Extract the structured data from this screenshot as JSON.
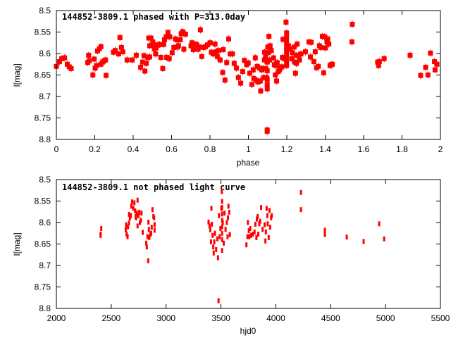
{
  "chart_data": [
    {
      "type": "scatter",
      "title": "144852-3809.1 phased with P=313.0day",
      "xlabel": "phase",
      "ylabel": "I[mag]",
      "xlim": [
        0,
        2
      ],
      "ylim": [
        8.5,
        8.8
      ],
      "y_inverted": true,
      "xticks": [
        0,
        0.2,
        0.4,
        0.6,
        0.8,
        1,
        1.2,
        1.4,
        1.6,
        1.8,
        2
      ],
      "yticks": [
        8.5,
        8.55,
        8.6,
        8.65,
        8.7,
        8.75,
        8.8
      ],
      "grid": false,
      "color": "#ff0000",
      "marker": "square",
      "points": [
        [
          0.0,
          8.63
        ],
        [
          0.016,
          8.619
        ],
        [
          0.028,
          8.612
        ],
        [
          0.043,
          8.61
        ],
        [
          0.057,
          8.625
        ],
        [
          0.067,
          8.631
        ],
        [
          0.077,
          8.635
        ],
        [
          0.163,
          8.621
        ],
        [
          0.171,
          8.617
        ],
        [
          0.168,
          8.604
        ],
        [
          0.19,
          8.65
        ],
        [
          0.197,
          8.613
        ],
        [
          0.202,
          8.634
        ],
        [
          0.209,
          8.628
        ],
        [
          0.214,
          8.594
        ],
        [
          0.224,
          8.589
        ],
        [
          0.232,
          8.584
        ],
        [
          0.232,
          8.625
        ],
        [
          0.241,
          8.62
        ],
        [
          0.248,
          8.617
        ],
        [
          0.256,
          8.615
        ],
        [
          0.259,
          8.651
        ],
        [
          0.297,
          8.597
        ],
        [
          0.306,
          8.593
        ],
        [
          0.324,
          8.601
        ],
        [
          0.331,
          8.563
        ],
        [
          0.339,
          8.586
        ],
        [
          0.346,
          8.596
        ],
        [
          0.368,
          8.615
        ],
        [
          0.395,
          8.615
        ],
        [
          0.416,
          8.604
        ],
        [
          0.439,
          8.632
        ],
        [
          0.449,
          8.62
        ],
        [
          0.456,
          8.605
        ],
        [
          0.461,
          8.641
        ],
        [
          0.468,
          8.623
        ],
        [
          0.476,
          8.609
        ],
        [
          0.486,
          8.608
        ],
        [
          0.481,
          8.564
        ],
        [
          0.486,
          8.582
        ],
        [
          0.493,
          8.564
        ],
        [
          0.502,
          8.573
        ],
        [
          0.508,
          8.579
        ],
        [
          0.51,
          8.589
        ],
        [
          0.517,
          8.601
        ],
        [
          0.52,
          8.587
        ],
        [
          0.53,
          8.58
        ],
        [
          0.538,
          8.579
        ],
        [
          0.544,
          8.609
        ],
        [
          0.554,
          8.635
        ],
        [
          0.559,
          8.579
        ],
        [
          0.563,
          8.568
        ],
        [
          0.571,
          8.561
        ],
        [
          0.581,
          8.551
        ],
        [
          0.583,
          8.56
        ],
        [
          0.591,
          8.561
        ],
        [
          0.574,
          8.609
        ],
        [
          0.588,
          8.612
        ],
        [
          0.603,
          8.598
        ],
        [
          0.612,
          8.586
        ],
        [
          0.62,
          8.566
        ],
        [
          0.628,
          8.568
        ],
        [
          0.63,
          8.585
        ],
        [
          0.636,
          8.582
        ],
        [
          0.645,
          8.568
        ],
        [
          0.65,
          8.554
        ],
        [
          0.657,
          8.549
        ],
        [
          0.664,
          8.59
        ],
        [
          0.673,
          8.555
        ],
        [
          0.701,
          8.582
        ],
        [
          0.706,
          8.575
        ],
        [
          0.713,
          8.591
        ],
        [
          0.722,
          8.579
        ],
        [
          0.73,
          8.579
        ],
        [
          0.738,
          8.59
        ],
        [
          0.748,
          8.585
        ],
        [
          0.75,
          8.545
        ],
        [
          0.757,
          8.607
        ],
        [
          0.767,
          8.586
        ],
        [
          0.777,
          8.584
        ],
        [
          0.787,
          8.58
        ],
        [
          0.801,
          8.575
        ],
        [
          0.807,
          8.597
        ],
        [
          0.816,
          8.601
        ],
        [
          0.826,
          8.578
        ],
        [
          0.832,
          8.596
        ],
        [
          0.838,
          8.607
        ],
        [
          0.844,
          8.593
        ],
        [
          0.853,
          8.615
        ],
        [
          0.866,
          8.644
        ],
        [
          0.869,
          8.591
        ],
        [
          0.878,
          8.662
        ],
        [
          0.887,
          8.621
        ],
        [
          0.897,
          8.566
        ],
        [
          0.905,
          8.601
        ],
        [
          0.917,
          8.601
        ],
        [
          0.926,
          8.623
        ],
        [
          0.938,
          8.634
        ],
        [
          0.948,
          8.656
        ],
        [
          0.96,
          8.669
        ],
        [
          0.97,
          8.642
        ],
        [
          0.979,
          8.616
        ],
        [
          0.991,
          8.626
        ],
        [
          0.999,
          8.622
        ],
        [
          1.007,
          8.646
        ],
        [
          1.018,
          8.672
        ],
        [
          1.025,
          8.638
        ],
        [
          1.028,
          8.658
        ],
        [
          1.036,
          8.61
        ],
        [
          1.04,
          8.662
        ],
        [
          1.046,
          8.63
        ],
        [
          1.049,
          8.666
        ],
        [
          1.058,
          8.634
        ],
        [
          1.062,
          8.664
        ],
        [
          1.064,
          8.687
        ],
        [
          1.07,
          8.638
        ],
        [
          1.076,
          8.635
        ],
        [
          1.079,
          8.656
        ],
        [
          1.083,
          8.615
        ],
        [
          1.084,
          8.597
        ],
        [
          1.089,
          8.609
        ],
        [
          1.091,
          8.635
        ],
        [
          1.095,
          8.656
        ],
        [
          1.098,
          8.682
        ],
        [
          1.098,
          8.781
        ],
        [
          1.098,
          8.778
        ],
        [
          1.098,
          8.62
        ],
        [
          1.098,
          8.64
        ],
        [
          1.098,
          8.66
        ],
        [
          1.098,
          8.672
        ],
        [
          1.101,
          8.585
        ],
        [
          1.103,
          8.598
        ],
        [
          1.107,
          8.56
        ],
        [
          1.111,
          8.615
        ],
        [
          1.113,
          8.582
        ],
        [
          1.119,
          8.593
        ],
        [
          1.131,
          8.61
        ],
        [
          1.135,
          8.626
        ],
        [
          1.14,
          8.65
        ],
        [
          1.144,
          8.628
        ],
        [
          1.147,
          8.664
        ],
        [
          1.15,
          8.621
        ],
        [
          1.156,
          8.642
        ],
        [
          1.162,
          8.638
        ],
        [
          1.168,
          8.633
        ],
        [
          1.174,
          8.631
        ],
        [
          1.177,
          8.609
        ],
        [
          1.18,
          8.567
        ],
        [
          1.184,
          8.611
        ],
        [
          1.196,
          8.527
        ],
        [
          1.199,
          8.552
        ],
        [
          1.199,
          8.563
        ],
        [
          1.199,
          8.574
        ],
        [
          1.199,
          8.585
        ],
        [
          1.199,
          8.595
        ],
        [
          1.199,
          8.601
        ],
        [
          1.199,
          8.612
        ],
        [
          1.199,
          8.622
        ],
        [
          1.199,
          8.628
        ],
        [
          1.209,
          8.582
        ],
        [
          1.217,
          8.589
        ],
        [
          1.226,
          8.612
        ],
        [
          1.229,
          8.598
        ],
        [
          1.238,
          8.585
        ],
        [
          1.241,
          8.62
        ],
        [
          1.245,
          8.646
        ],
        [
          1.248,
          8.604
        ],
        [
          1.25,
          8.623
        ],
        [
          1.254,
          8.578
        ],
        [
          1.26,
          8.604
        ],
        [
          1.266,
          8.615
        ],
        [
          1.274,
          8.601
        ],
        [
          1.297,
          8.596
        ],
        [
          1.315,
          8.573
        ],
        [
          1.323,
          8.608
        ],
        [
          1.327,
          8.574
        ],
        [
          1.341,
          8.619
        ],
        [
          1.348,
          8.596
        ],
        [
          1.355,
          8.633
        ],
        [
          1.364,
          8.63
        ],
        [
          1.37,
          8.582
        ],
        [
          1.377,
          8.586
        ],
        [
          1.385,
          8.56
        ],
        [
          1.392,
          8.645
        ],
        [
          1.397,
          8.561
        ],
        [
          1.401,
          8.587
        ],
        [
          1.409,
          8.573
        ],
        [
          1.413,
          8.566
        ],
        [
          1.419,
          8.578
        ],
        [
          1.425,
          8.628
        ],
        [
          1.431,
          8.626
        ],
        [
          1.437,
          8.625
        ],
        [
          1.541,
          8.532
        ],
        [
          1.539,
          8.573
        ],
        [
          1.673,
          8.62
        ],
        [
          1.678,
          8.628
        ],
        [
          1.682,
          8.619
        ],
        [
          1.707,
          8.612
        ],
        [
          1.842,
          8.604
        ],
        [
          1.897,
          8.651
        ],
        [
          1.923,
          8.632
        ],
        [
          1.935,
          8.65
        ],
        [
          1.948,
          8.599
        ],
        [
          1.969,
          8.619
        ],
        [
          1.972,
          8.638
        ],
        [
          1.982,
          8.625
        ]
      ]
    },
    {
      "type": "scatter",
      "title": "144852-3809.1 not phased light curve",
      "xlabel": "hjd0",
      "ylabel": "I[mag]",
      "xlim": [
        2000,
        5500
      ],
      "ylim": [
        8.5,
        8.8
      ],
      "y_inverted": true,
      "xticks": [
        2000,
        2500,
        3000,
        3500,
        4000,
        4500,
        5000,
        5500
      ],
      "yticks": [
        8.5,
        8.55,
        8.6,
        8.65,
        8.7,
        8.75,
        8.8
      ],
      "grid": false,
      "color": "#ff0000",
      "marker": "errorbar-dot",
      "points": [
        [
          2403,
          8.627
        ],
        [
          2409,
          8.614
        ],
        [
          2403,
          8.63
        ],
        [
          2632,
          8.616
        ],
        [
          2640,
          8.627
        ],
        [
          2649,
          8.633
        ],
        [
          2636,
          8.605
        ],
        [
          2653,
          8.61
        ],
        [
          2662,
          8.601
        ],
        [
          2662,
          8.581
        ],
        [
          2670,
          8.589
        ],
        [
          2679,
          8.584
        ],
        [
          2683,
          8.562
        ],
        [
          2690,
          8.552
        ],
        [
          2701,
          8.567
        ],
        [
          2711,
          8.554
        ],
        [
          2718,
          8.573
        ],
        [
          2722,
          8.586
        ],
        [
          2727,
          8.589
        ],
        [
          2733,
          8.578
        ],
        [
          2740,
          8.548
        ],
        [
          2740,
          8.608
        ],
        [
          2748,
          8.584
        ],
        [
          2755,
          8.576
        ],
        [
          2761,
          8.6
        ],
        [
          2770,
          8.595
        ],
        [
          2776,
          8.578
        ],
        [
          2787,
          8.623
        ],
        [
          2819,
          8.648
        ],
        [
          2824,
          8.657
        ],
        [
          2830,
          8.633
        ],
        [
          2839,
          8.599
        ],
        [
          2837,
          8.689
        ],
        [
          2843,
          8.616
        ],
        [
          2847,
          8.635
        ],
        [
          2856,
          8.628
        ],
        [
          2863,
          8.625
        ],
        [
          2869,
          8.611
        ],
        [
          2876,
          8.57
        ],
        [
          2884,
          8.586
        ],
        [
          2891,
          8.589
        ],
        [
          2895,
          8.605
        ],
        [
          2895,
          8.618
        ],
        [
          3387,
          8.599
        ],
        [
          3396,
          8.608
        ],
        [
          3402,
          8.617
        ],
        [
          3409,
          8.645
        ],
        [
          3413,
          8.567
        ],
        [
          3417,
          8.604
        ],
        [
          3424,
          8.63
        ],
        [
          3430,
          8.657
        ],
        [
          3434,
          8.671
        ],
        [
          3439,
          8.645
        ],
        [
          3445,
          8.625
        ],
        [
          3456,
          8.663
        ],
        [
          3467,
          8.638
        ],
        [
          3473,
          8.682
        ],
        [
          3478,
          8.782
        ],
        [
          3482,
          8.584
        ],
        [
          3488,
          8.633
        ],
        [
          3495,
          8.614
        ],
        [
          3503,
          8.567
        ],
        [
          3510,
          8.551
        ],
        [
          3510,
          8.565
        ],
        [
          3510,
          8.58
        ],
        [
          3510,
          8.595
        ],
        [
          3510,
          8.61
        ],
        [
          3510,
          8.625
        ],
        [
          3510,
          8.64
        ],
        [
          3508,
          8.528
        ],
        [
          3510,
          8.665
        ],
        [
          3516,
          8.6
        ],
        [
          3525,
          8.648
        ],
        [
          3532,
          8.578
        ],
        [
          3542,
          8.616
        ],
        [
          3553,
          8.6
        ],
        [
          3560,
          8.633
        ],
        [
          3564,
          8.589
        ],
        [
          3568,
          8.562
        ],
        [
          3575,
          8.576
        ],
        [
          3581,
          8.628
        ],
        [
          3732,
          8.652
        ],
        [
          3741,
          8.633
        ],
        [
          3745,
          8.6
        ],
        [
          3754,
          8.619
        ],
        [
          3758,
          8.633
        ],
        [
          3767,
          8.614
        ],
        [
          3775,
          8.63
        ],
        [
          3790,
          8.627
        ],
        [
          3806,
          8.622
        ],
        [
          3814,
          8.604
        ],
        [
          3823,
          8.635
        ],
        [
          3827,
          8.592
        ],
        [
          3834,
          8.586
        ],
        [
          3840,
          8.627
        ],
        [
          3849,
          8.603
        ],
        [
          3857,
          8.597
        ],
        [
          3866,
          8.565
        ],
        [
          3879,
          8.616
        ],
        [
          3898,
          8.605
        ],
        [
          3905,
          8.643
        ],
        [
          3909,
          8.622
        ],
        [
          3916,
          8.567
        ],
        [
          3922,
          8.584
        ],
        [
          3926,
          8.603
        ],
        [
          3935,
          8.635
        ],
        [
          3942,
          8.572
        ],
        [
          3948,
          8.611
        ],
        [
          3957,
          8.589
        ],
        [
          3963,
          8.584
        ],
        [
          4229,
          8.53
        ],
        [
          4229,
          8.57
        ],
        [
          4447,
          8.618
        ],
        [
          4447,
          8.628
        ],
        [
          4646,
          8.634
        ],
        [
          4800,
          8.644
        ],
        [
          4942,
          8.603
        ],
        [
          4987,
          8.638
        ]
      ]
    }
  ]
}
